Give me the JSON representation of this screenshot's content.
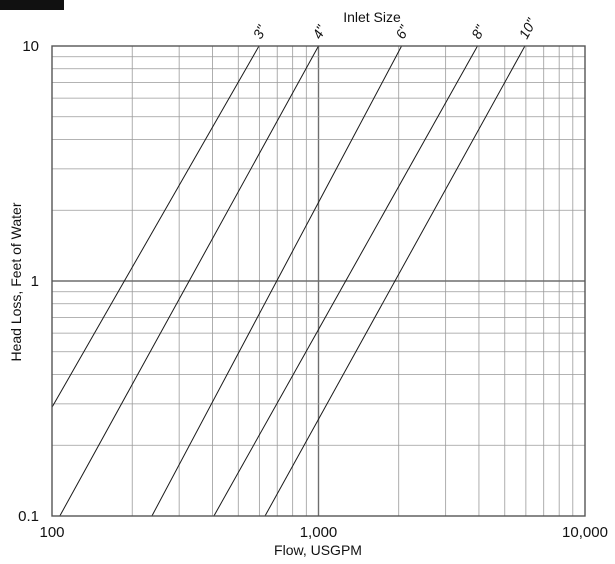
{
  "chart_data": {
    "type": "line",
    "title": "Inlet Size",
    "xlabel": "Flow, USGPM",
    "ylabel": "Head Loss, Feet of Water",
    "x_scale": "log",
    "y_scale": "log",
    "xlim": [
      100,
      10000
    ],
    "ylim": [
      0.1,
      10
    ],
    "x_ticks": [
      "100",
      "1,000",
      "10,000"
    ],
    "y_ticks": [
      "0.1",
      "1",
      "10"
    ],
    "grid": true,
    "series": [
      {
        "name": "3\"",
        "x": [
          100,
          598
        ],
        "y": [
          0.29,
          10
        ]
      },
      {
        "name": "4\"",
        "x": [
          107,
          1000
        ],
        "y": [
          0.1,
          10
        ]
      },
      {
        "name": "6\"",
        "x": [
          237,
          2050
        ],
        "y": [
          0.1,
          10
        ]
      },
      {
        "name": "8\"",
        "x": [
          405,
          3950
        ],
        "y": [
          0.1,
          10
        ]
      },
      {
        "name": "10\"",
        "x": [
          630,
          5950
        ],
        "y": [
          0.1,
          10
        ]
      }
    ]
  }
}
